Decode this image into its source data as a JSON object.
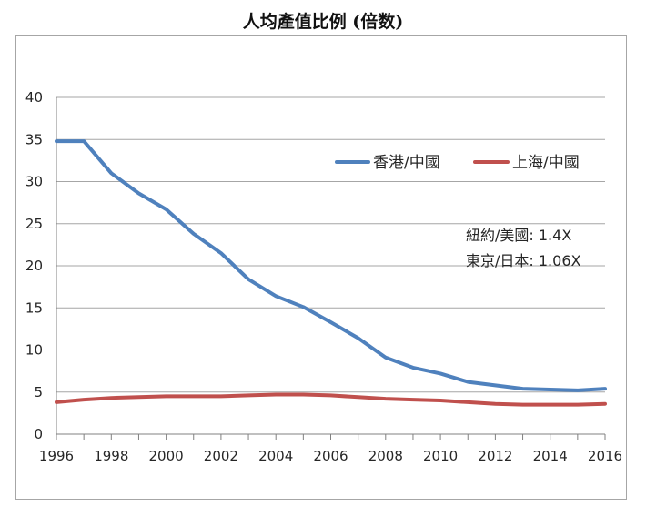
{
  "chart_data": {
    "type": "line",
    "title": "人均產值比例 (倍数)",
    "xlabel": "",
    "ylabel": "",
    "x": [
      1996,
      1997,
      1998,
      1999,
      2000,
      2001,
      2002,
      2003,
      2004,
      2005,
      2006,
      2007,
      2008,
      2009,
      2010,
      2011,
      2012,
      2013,
      2014,
      2015,
      2016
    ],
    "xlim": [
      1996,
      2016
    ],
    "ylim": [
      0,
      40
    ],
    "x_ticks": [
      "1996",
      "1998",
      "2000",
      "2002",
      "2004",
      "2006",
      "2008",
      "2010",
      "2012",
      "2014",
      "2016"
    ],
    "y_ticks": [
      "0",
      "5",
      "10",
      "15",
      "20",
      "25",
      "30",
      "35",
      "40"
    ],
    "grid": true,
    "legend_position": "top-right",
    "series": [
      {
        "name": "香港/中國",
        "color": "#4f81bd",
        "values": [
          34.8,
          34.8,
          31.0,
          28.6,
          26.7,
          23.8,
          21.5,
          18.4,
          16.4,
          15.1,
          13.3,
          11.4,
          9.1,
          7.9,
          7.2,
          6.2,
          5.8,
          5.4,
          5.3,
          5.2,
          5.4
        ]
      },
      {
        "name": "上海/中國",
        "color": "#c0504d",
        "values": [
          3.8,
          4.1,
          4.3,
          4.4,
          4.5,
          4.5,
          4.5,
          4.6,
          4.7,
          4.7,
          4.6,
          4.4,
          4.2,
          4.1,
          4.0,
          3.8,
          3.6,
          3.5,
          3.5,
          3.5,
          3.6
        ]
      }
    ],
    "annotations": [
      "紐約/美國:   1.4X",
      "東京/日本: 1.06X"
    ]
  }
}
